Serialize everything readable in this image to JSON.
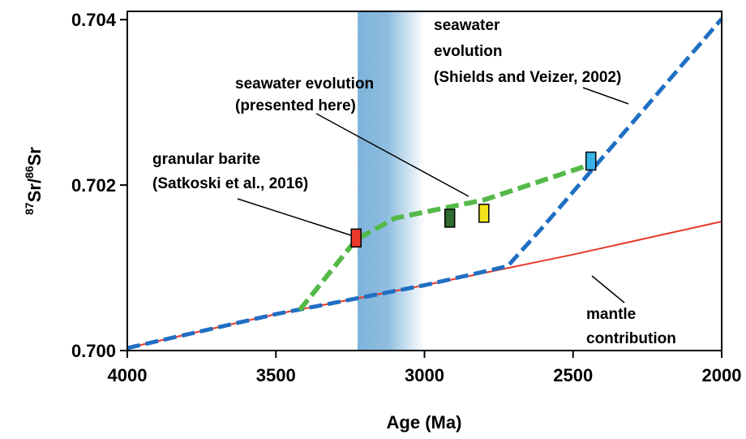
{
  "chart_data": {
    "type": "line",
    "xlabel": "Age (Ma)",
    "ylabel": {
      "sup1": "87",
      "base1": "Sr/",
      "sup2": "86",
      "base2": "Sr"
    },
    "xlim": [
      4000,
      2000
    ],
    "ylim": [
      0.7,
      0.7041
    ],
    "x_reversed": true,
    "x_ticks": [
      {
        "value": 4000,
        "label": "4000"
      },
      {
        "value": 3500,
        "label": "3500"
      },
      {
        "value": 3000,
        "label": "3000"
      },
      {
        "value": 2500,
        "label": "2500"
      },
      {
        "value": 2000,
        "label": "2000"
      }
    ],
    "y_ticks": [
      {
        "value": 0.7,
        "label": "0.700"
      },
      {
        "value": 0.702,
        "label": "0.702"
      },
      {
        "value": 0.704,
        "label": "0.704"
      }
    ],
    "grid": false,
    "shaded_band": {
      "x_from": 3225,
      "x_to": 3000,
      "color": "#7db4db"
    },
    "series": [
      {
        "key": "mantle",
        "style": "solid",
        "color": "#e8392b",
        "points": [
          [
            4000,
            0.70003
          ],
          [
            3500,
            0.70044
          ],
          [
            3000,
            0.70079
          ],
          [
            2500,
            0.70116
          ],
          [
            2000,
            0.70156
          ]
        ]
      },
      {
        "key": "shields",
        "style": "dashed",
        "color": "#1f6fc4",
        "points": [
          [
            4000,
            0.70003
          ],
          [
            3500,
            0.70044
          ],
          [
            3000,
            0.70079
          ],
          [
            2720,
            0.70102
          ],
          [
            2600,
            0.7015
          ],
          [
            2000,
            0.70401
          ]
        ]
      },
      {
        "key": "here",
        "style": "dashed",
        "color": "#54b948",
        "points": [
          [
            3420,
            0.70049
          ],
          [
            3230,
            0.70134
          ],
          [
            3100,
            0.7016
          ],
          [
            2800,
            0.70182
          ],
          [
            2440,
            0.70225
          ]
        ]
      }
    ],
    "markers": [
      {
        "key": "granular-barite",
        "x": 3230,
        "y": 0.70136,
        "color": "#e8392b"
      },
      {
        "key": "dark-green",
        "x": 2915,
        "y": 0.7016,
        "color": "#2e6b2e"
      },
      {
        "key": "yellow",
        "x": 2800,
        "y": 0.70166,
        "color": "#f2e31b"
      },
      {
        "key": "cyan",
        "x": 2440,
        "y": 0.70229,
        "color": "#35b2e6"
      }
    ],
    "annotations": [
      {
        "key": "shields",
        "lines": [
          "seawater",
          "evolution",
          "(Shields and Veizer, 2002)"
        ]
      },
      {
        "key": "here",
        "lines": [
          "seawater evolution",
          "(presented here)"
        ]
      },
      {
        "key": "barite",
        "lines": [
          "granular barite",
          "(Satkoski et al., 2016)"
        ]
      },
      {
        "key": "mantle",
        "lines": [
          "mantle",
          "contribution"
        ]
      }
    ]
  }
}
